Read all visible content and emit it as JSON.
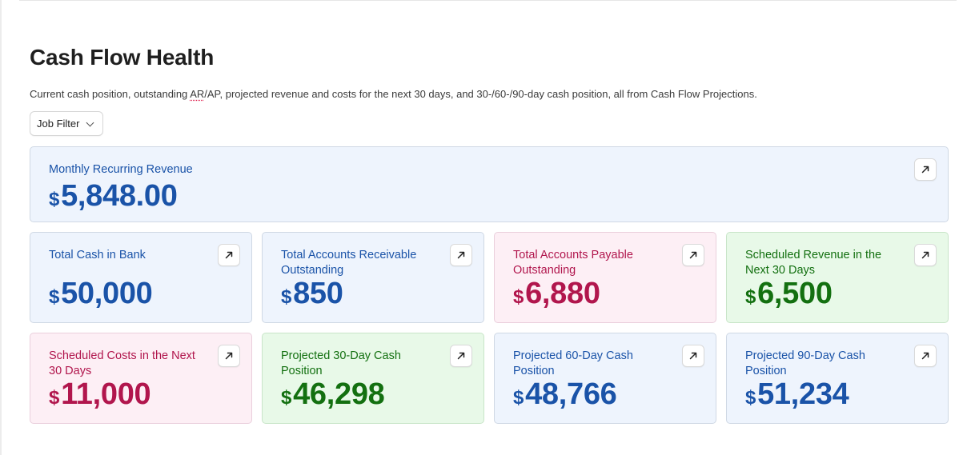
{
  "header": {
    "title": "Cash Flow Health",
    "description_pre": "Current cash position, outstanding ",
    "description_abbr": "AR",
    "description_post": "/AP, projected revenue and costs for the next 30 days, and 30-/60-/90-day cash position, all from Cash Flow Projections."
  },
  "filter": {
    "label": "Job Filter"
  },
  "cards": {
    "mrr": {
      "label": "Monthly Recurring Revenue",
      "currency": "$",
      "value": "5,848.00"
    },
    "cash_in_bank": {
      "label": "Total Cash in Bank",
      "currency": "$",
      "value": "50,000"
    },
    "ar_outstanding": {
      "label": "Total Accounts Receivable Outstanding",
      "currency": "$",
      "value": "850"
    },
    "ap_outstanding": {
      "label": "Total Accounts Payable Outstanding",
      "currency": "$",
      "value": "6,880"
    },
    "scheduled_revenue": {
      "label": "Scheduled Revenue in the Next 30 Days",
      "currency": "$",
      "value": "6,500"
    },
    "scheduled_costs": {
      "label": "Scheduled Costs in the Next 30 Days",
      "currency": "$",
      "value": "11,000"
    },
    "proj_30": {
      "label": "Projected 30-Day Cash Position",
      "currency": "$",
      "value": "46,298"
    },
    "proj_60": {
      "label": "Projected 60-Day Cash Position",
      "currency": "$",
      "value": "48,766"
    },
    "proj_90": {
      "label": "Projected 90-Day Cash Position",
      "currency": "$",
      "value": "51,234"
    }
  },
  "colors": {
    "blue": "#1a53a8",
    "pink": "#b1164d",
    "green": "#137010"
  },
  "icons": {
    "open": "arrow-up-right-icon",
    "filter_chevron": "chevron-down-icon"
  }
}
